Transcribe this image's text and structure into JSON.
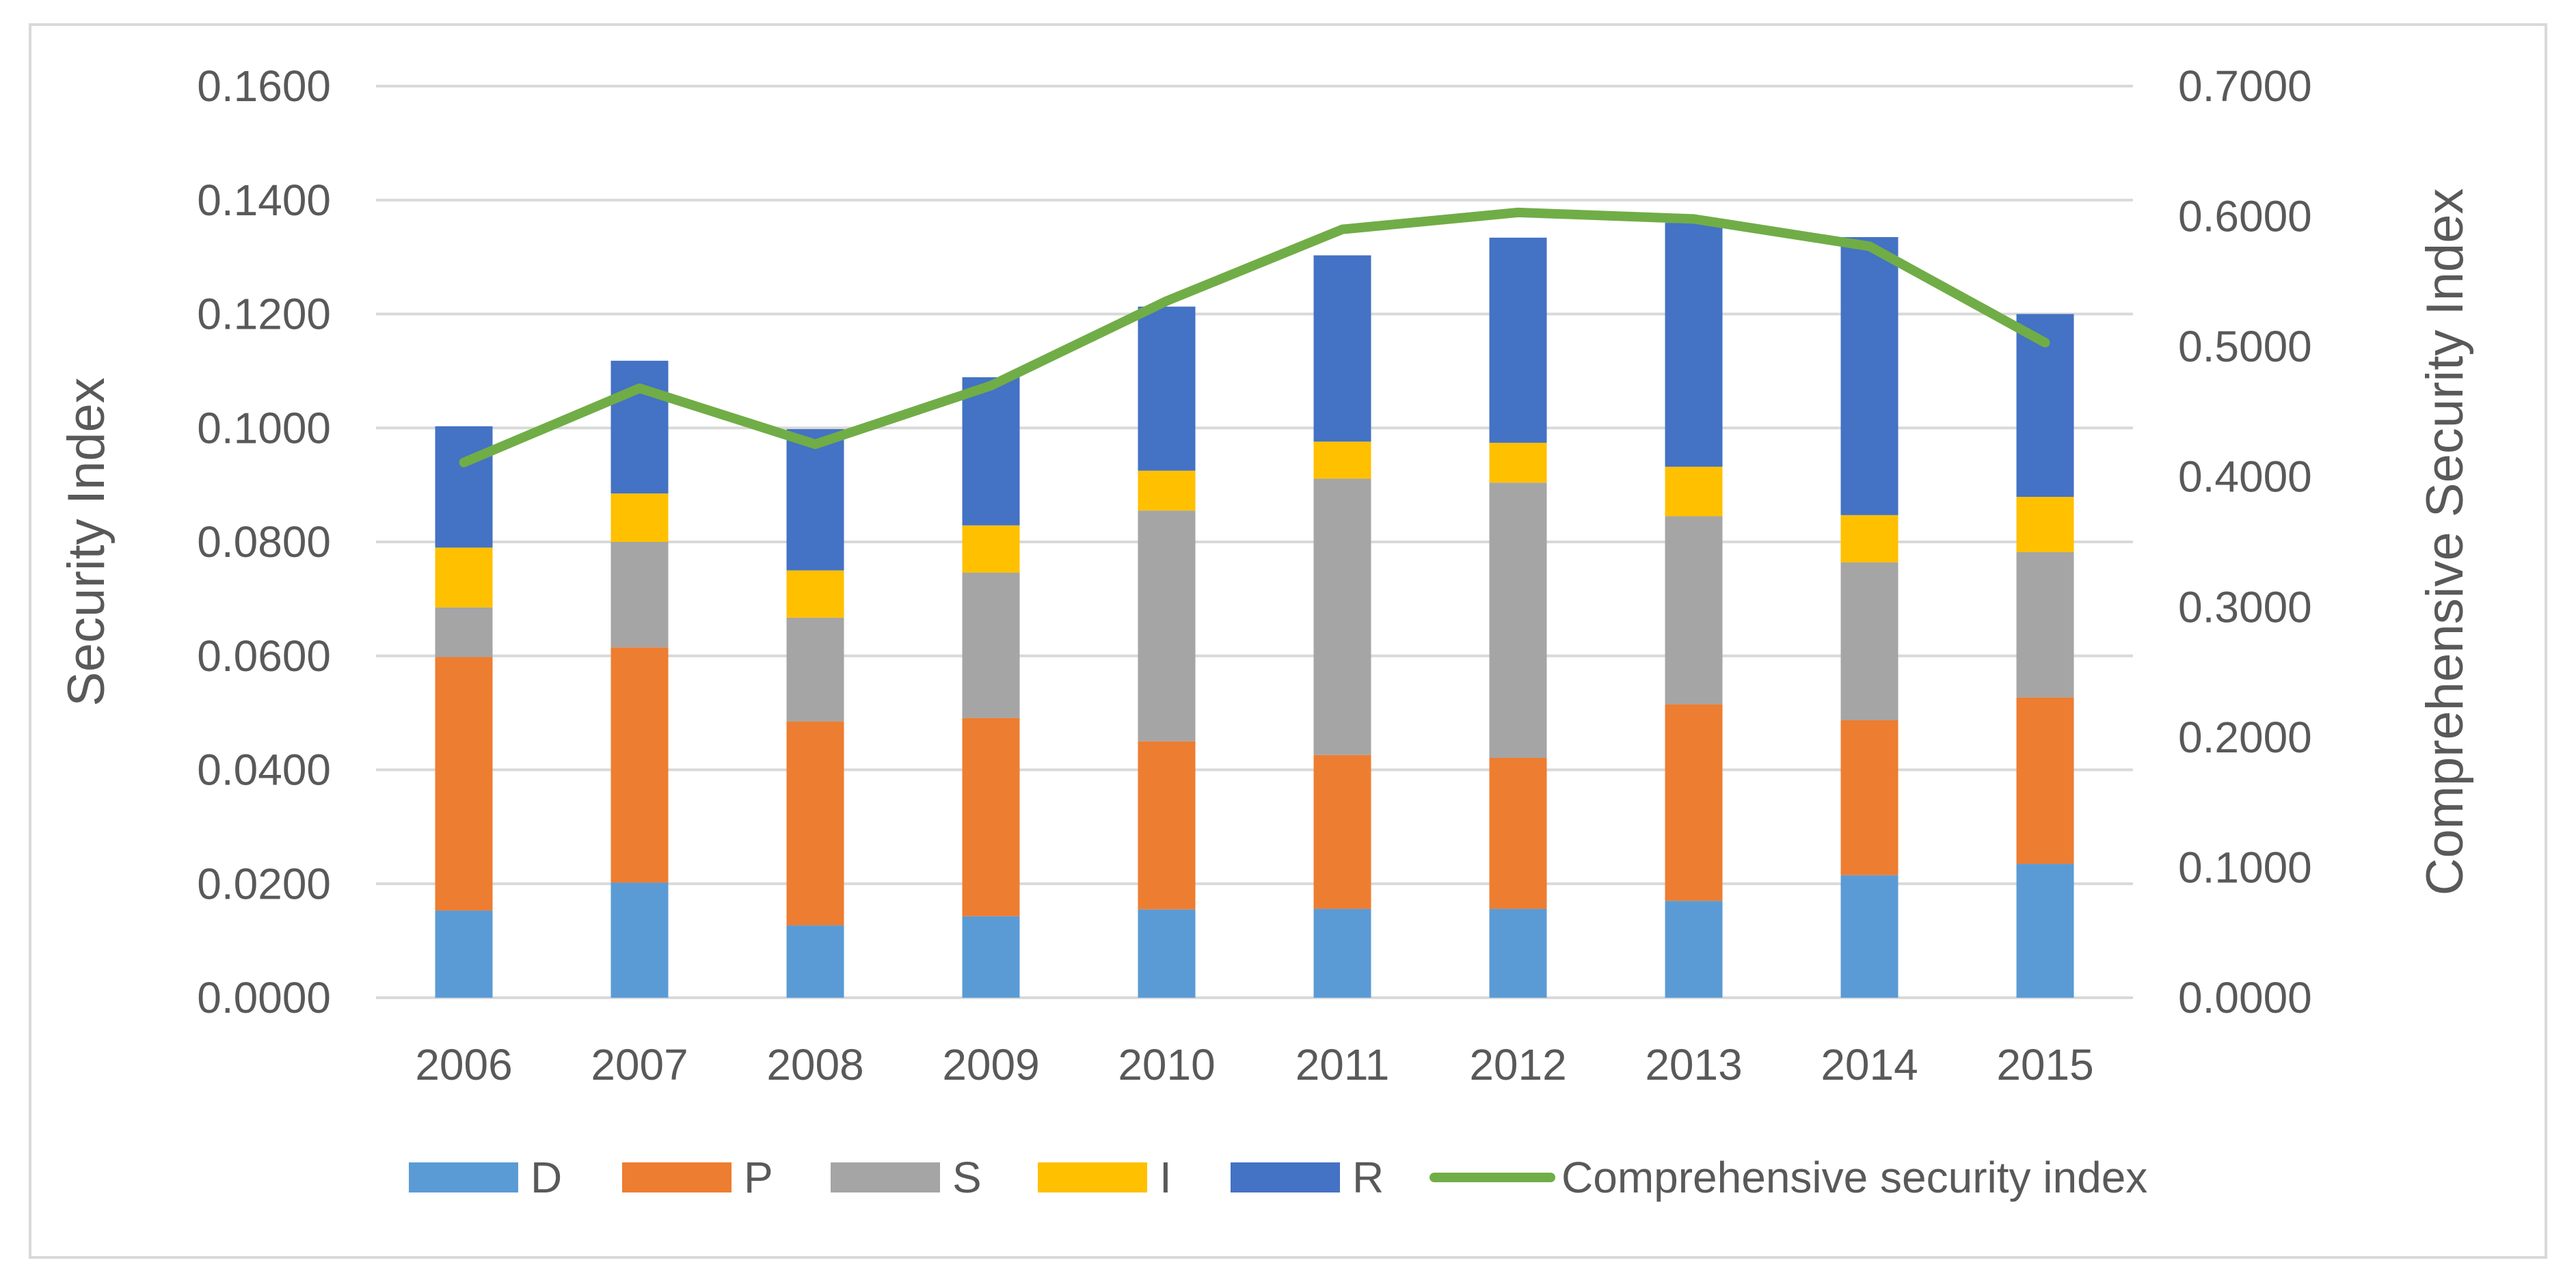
{
  "chart_data": {
    "type": "bar",
    "stacked": true,
    "title": "",
    "categories": [
      "2006",
      "2007",
      "2008",
      "2009",
      "2010",
      "2011",
      "2012",
      "2013",
      "2014",
      "2015"
    ],
    "xlabel": "",
    "ylabel": "Security Index",
    "y2label": "Comprehensive Security Index",
    "ylim": [
      0,
      0.16
    ],
    "y2lim": [
      0,
      0.7
    ],
    "yticks": [
      "0.0000",
      "0.0200",
      "0.0400",
      "0.0600",
      "0.0800",
      "0.1000",
      "0.1200",
      "0.1400",
      "0.1600"
    ],
    "y2ticks": [
      "0.0000",
      "0.1000",
      "0.2000",
      "0.3000",
      "0.4000",
      "0.5000",
      "0.6000",
      "0.7000"
    ],
    "grid": true,
    "legend_position": "bottom",
    "series": [
      {
        "name": "D",
        "color": "#5b9bd5",
        "values": [
          0.0153,
          0.0202,
          0.0127,
          0.0143,
          0.0155,
          0.0156,
          0.0156,
          0.017,
          0.0215,
          0.0235
        ]
      },
      {
        "name": "P",
        "color": "#ed7d31",
        "values": [
          0.0445,
          0.0413,
          0.0358,
          0.0348,
          0.0295,
          0.027,
          0.0265,
          0.0345,
          0.0272,
          0.0292
        ]
      },
      {
        "name": "S",
        "color": "#a5a5a5",
        "values": [
          0.0087,
          0.0185,
          0.0182,
          0.0255,
          0.0405,
          0.0485,
          0.0483,
          0.033,
          0.0277,
          0.0255
        ]
      },
      {
        "name": "I",
        "color": "#ffc000",
        "values": [
          0.0105,
          0.0085,
          0.0083,
          0.0083,
          0.007,
          0.0065,
          0.007,
          0.0087,
          0.0083,
          0.0097
        ]
      },
      {
        "name": "R",
        "color": "#4472c4",
        "values": [
          0.0213,
          0.0233,
          0.0248,
          0.026,
          0.0288,
          0.0327,
          0.036,
          0.0428,
          0.0488,
          0.0321
        ]
      }
    ],
    "line_series": {
      "name": "Comprehensive security index",
      "color": "#70ad47",
      "axis": "secondary",
      "values": [
        0.411,
        0.468,
        0.425,
        0.47,
        0.535,
        0.59,
        0.603,
        0.598,
        0.577,
        0.503
      ]
    }
  }
}
